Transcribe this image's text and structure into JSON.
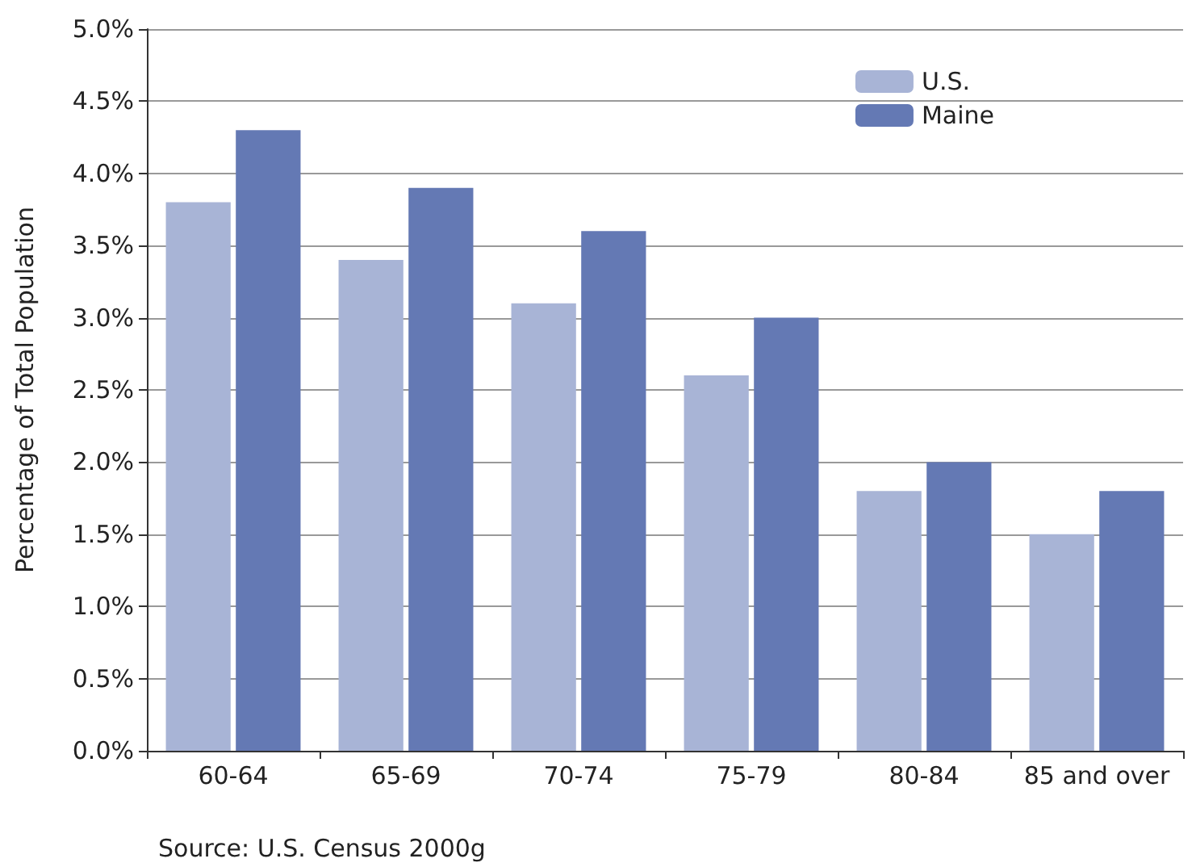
{
  "chart_data": {
    "type": "bar",
    "ylabel": "Percentage of Total Population",
    "categories": [
      "60-64",
      "65-69",
      "70-74",
      "75-79",
      "80-84",
      "85 and over"
    ],
    "series": [
      {
        "name": "U.S.",
        "color": "#a8b4d6",
        "values": [
          3.8,
          3.4,
          3.1,
          2.6,
          1.8,
          1.5
        ]
      },
      {
        "name": "Maine",
        "color": "#6479b4",
        "values": [
          4.3,
          3.9,
          3.6,
          3.0,
          2.0,
          1.8
        ]
      }
    ],
    "ylim": [
      0,
      5
    ],
    "yticks": [
      {
        "value": 0,
        "label": "0.0%"
      },
      {
        "value": 0.5,
        "label": "0.5%"
      },
      {
        "value": 1,
        "label": "1.0%"
      },
      {
        "value": 1.5,
        "label": "1.5%"
      },
      {
        "value": 2,
        "label": "2.0%"
      },
      {
        "value": 2.5,
        "label": "2.5%"
      },
      {
        "value": 3,
        "label": "3.0%"
      },
      {
        "value": 3.5,
        "label": "3.5%"
      },
      {
        "value": 4,
        "label": "4.0%"
      },
      {
        "value": 4.5,
        "label": "4.5%"
      },
      {
        "value": 5,
        "label": "5.0%"
      }
    ],
    "grid": "y",
    "legend": "top right",
    "annotations": [
      "Source: U.S. Census 2000g"
    ]
  }
}
